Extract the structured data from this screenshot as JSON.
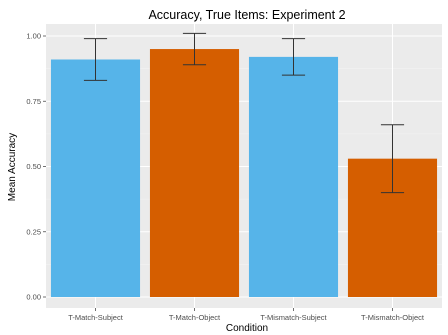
{
  "chart_data": {
    "type": "bar",
    "title": "Accuracy, True Items: Experiment 2",
    "xlabel": "Condition",
    "ylabel": "Mean Accuracy",
    "ylim": [
      0,
      1.05
    ],
    "yticks": [
      0,
      0.25,
      0.5,
      0.75,
      1.0
    ],
    "ytick_labels": [
      "0.00",
      "0.25",
      "0.50",
      "0.75",
      "1.00"
    ],
    "grid": true,
    "categories": [
      "T-Match-Subject",
      "T-Match-Object",
      "T-Mismatch-Subject",
      "T-Mismatch-Object"
    ],
    "values": [
      0.91,
      0.95,
      0.92,
      0.53
    ],
    "error_low": [
      0.83,
      0.89,
      0.85,
      0.4
    ],
    "error_high": [
      0.99,
      1.01,
      0.99,
      0.66
    ],
    "bar_colors": [
      "#56b4e9",
      "#d55e00",
      "#56b4e9",
      "#d55e00"
    ],
    "panel_background": "#ebebeb",
    "grid_color": "#ffffff"
  }
}
